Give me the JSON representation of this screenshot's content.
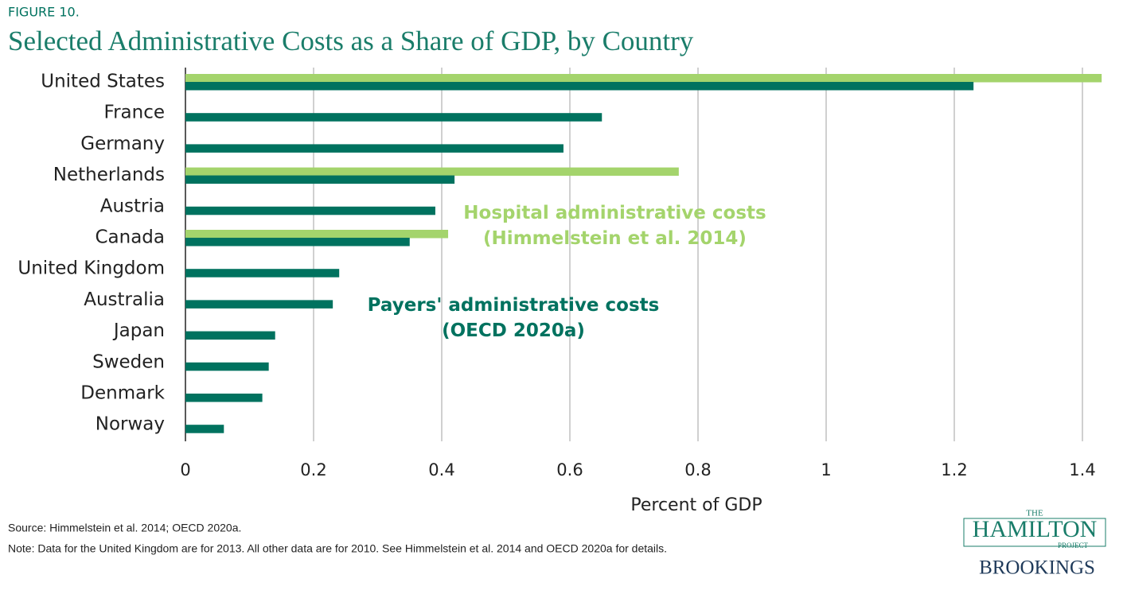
{
  "figure_label": "FIGURE 10.",
  "chart_data": {
    "type": "hbar",
    "title": "Selected Administrative Costs as a Share of GDP, by Country",
    "categories": [
      "United States",
      "France",
      "Germany",
      "Netherlands",
      "Austria",
      "Canada",
      "United Kingdom",
      "Australia",
      "Japan",
      "Sweden",
      "Denmark",
      "Norway"
    ],
    "series": [
      {
        "name": "Hospital administrative costs\n(Himmelstein et al. 2014)",
        "color": "#a4d46c",
        "values": [
          1.43,
          null,
          null,
          0.77,
          null,
          0.41,
          null,
          null,
          null,
          null,
          null,
          null
        ]
      },
      {
        "name": "Payers' administrative costs\n(OECD 2020a)",
        "color": "#00725f",
        "values": [
          1.23,
          0.65,
          0.59,
          0.42,
          0.39,
          0.35,
          0.24,
          0.23,
          0.14,
          0.13,
          0.12,
          0.06
        ]
      }
    ],
    "xlim": [
      0,
      1.43
    ],
    "xticks": [
      0,
      0.2,
      0.4,
      0.6,
      0.8,
      1,
      1.2,
      1.4
    ],
    "xlabel": "Percent of GDP",
    "grid": true
  },
  "source": "Source: Himmelstein et al. 2014; OECD 2020a.",
  "note": "Note: Data for the United Kingdom are for 2013. All other data are for 2010. See Himmelstein et al. 2014 and OECD 2020a for details.",
  "logo": {
    "the": "THE",
    "hamilton": "HAMILTON",
    "project": "PROJECT",
    "brookings": "BROOKINGS"
  }
}
